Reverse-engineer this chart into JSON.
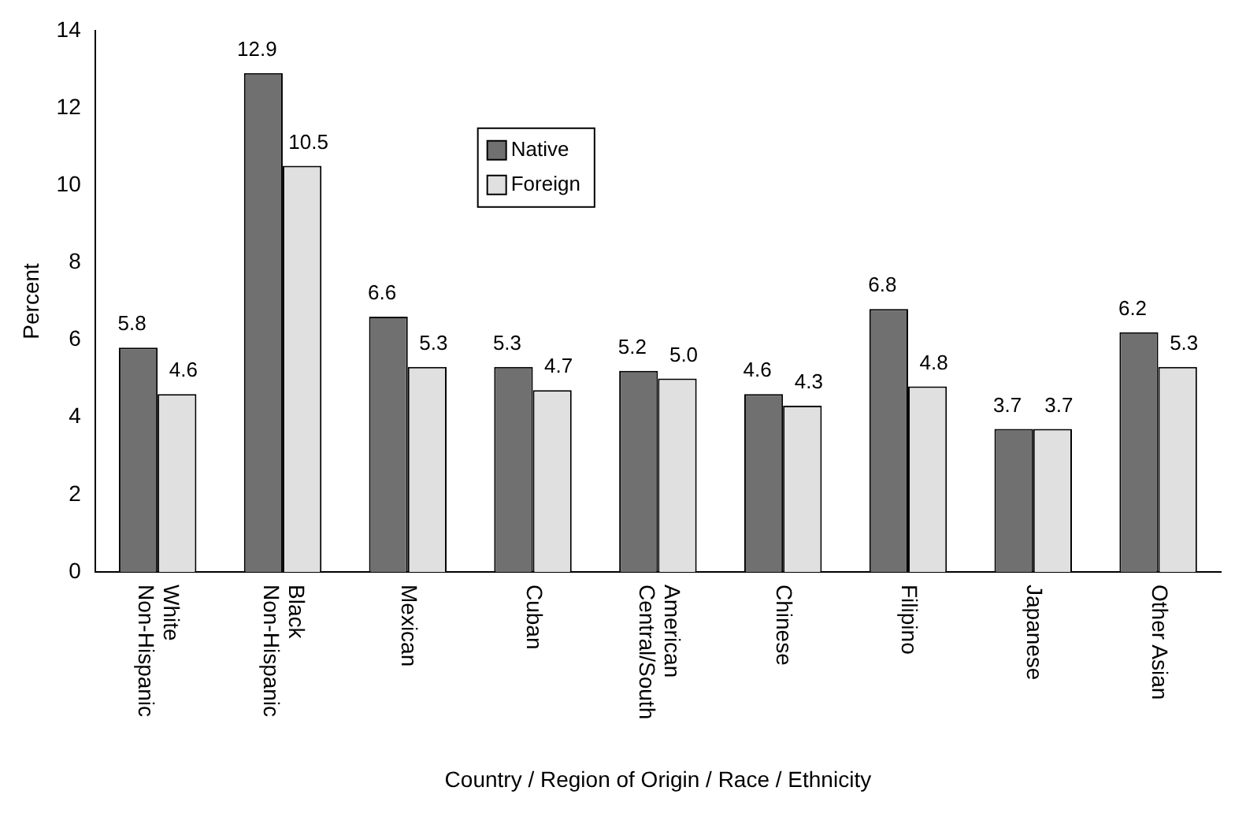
{
  "chart_data": {
    "type": "bar",
    "xlabel": "Country / Region of Origin / Race / Ethnicity",
    "ylabel": "Percent",
    "categories": [
      "Non-Hispanic White",
      "Non-Hispanic Black",
      "Mexican",
      "Cuban",
      "Central/South American",
      "Chinese",
      "Filipino",
      "Japanese",
      "Other Asian"
    ],
    "series": [
      {
        "name": "Native",
        "color": "#707070",
        "values": [
          5.8,
          12.9,
          6.6,
          5.3,
          5.2,
          4.6,
          6.8,
          3.7,
          6.2
        ],
        "value_labels": [
          "5.8",
          "12.9",
          "6.6",
          "5.3",
          "5.2",
          "4.6",
          "6.8",
          "3.7",
          "6.2"
        ]
      },
      {
        "name": "Foreign",
        "color": "#e0e0e0",
        "values": [
          4.6,
          10.5,
          5.3,
          4.7,
          5.0,
          4.3,
          4.8,
          3.7,
          5.3
        ],
        "value_labels": [
          "4.6",
          "10.5",
          "5.3",
          "4.7",
          "5.0",
          "4.3",
          "4.8",
          "3.7",
          "5.3"
        ]
      }
    ],
    "ylim": [
      0,
      14
    ],
    "yticks": [
      0,
      2,
      4,
      6,
      8,
      10,
      12,
      14
    ],
    "grid": false,
    "legend": "top"
  }
}
